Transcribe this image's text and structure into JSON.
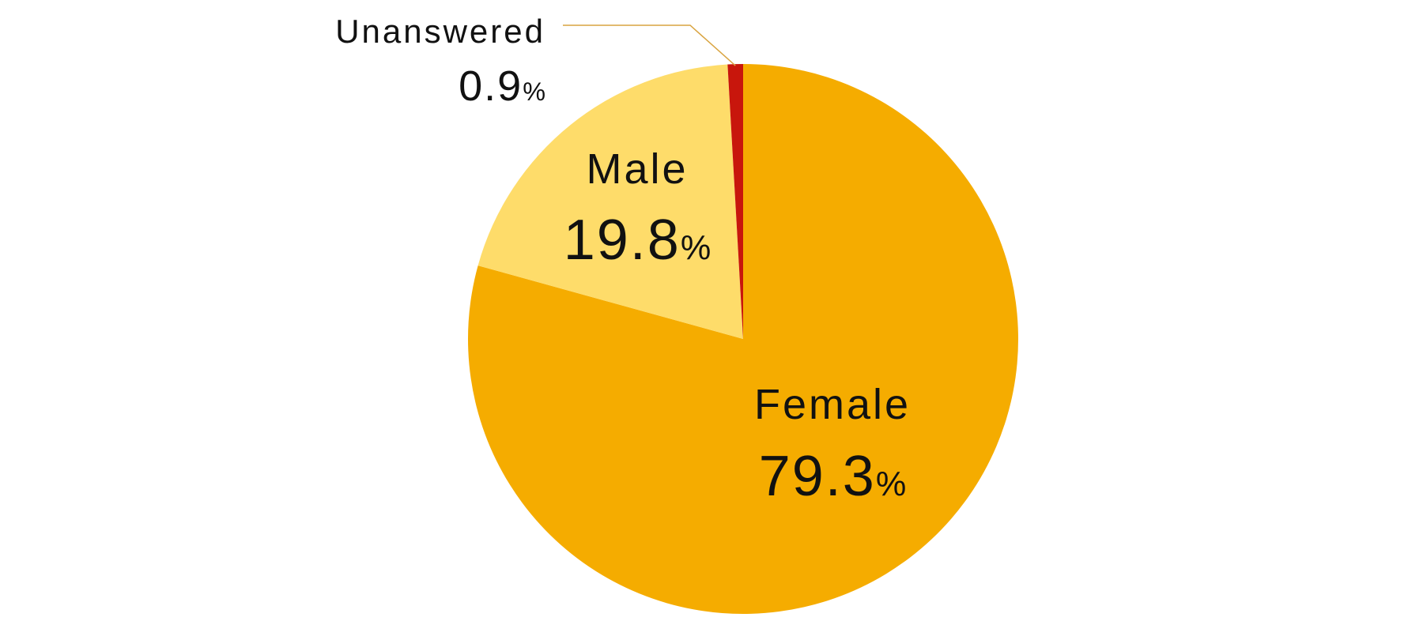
{
  "chart_data": {
    "type": "pie",
    "start_angle": "12 o'clock",
    "direction": "clockwise",
    "slices": [
      {
        "label": "Female",
        "value": 79.3,
        "display_value": "79.3",
        "unit": "%",
        "color": "#F5AC00"
      },
      {
        "label": "Male",
        "value": 19.8,
        "display_value": "19.8",
        "unit": "%",
        "color": "#FEDC6A"
      },
      {
        "label": "Unanswered",
        "value": 0.9,
        "display_value": "0.9",
        "unit": "%",
        "color": "#C8160C"
      }
    ],
    "leader_line_color": "#D9A441"
  }
}
